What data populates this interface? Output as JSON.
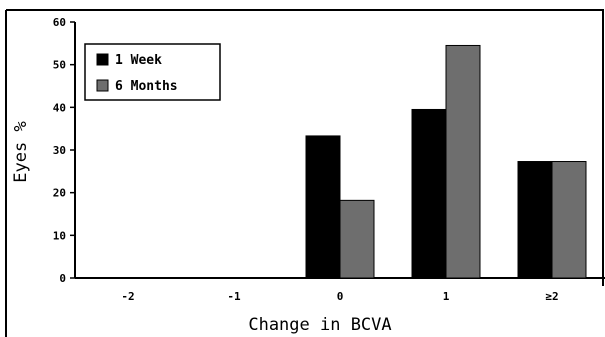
{
  "chart_data": {
    "type": "bar",
    "title": "",
    "xlabel": "Change in BCVA",
    "ylabel": "Eyes %",
    "categories": [
      "-2",
      "-1",
      "0",
      "1",
      "≥2"
    ],
    "series": [
      {
        "name": "1 Week",
        "color": "#000000",
        "values": [
          0,
          0,
          33.3,
          39.5,
          27.3
        ]
      },
      {
        "name": "6 Months",
        "color": "#6e6e6e",
        "values": [
          0,
          0,
          18.2,
          54.5,
          27.3
        ]
      }
    ],
    "ylim": [
      0,
      60
    ],
    "yticks": [
      0,
      10,
      20,
      30,
      40,
      50,
      60
    ],
    "grid": false,
    "legend_position": "top-left"
  }
}
